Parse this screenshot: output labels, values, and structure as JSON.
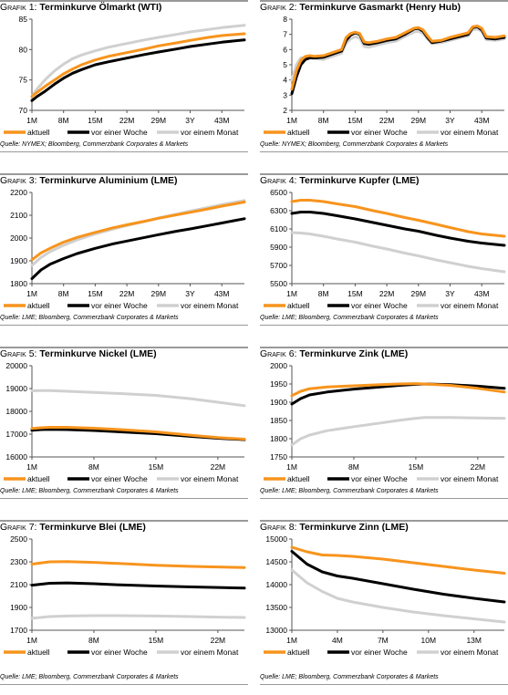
{
  "legend": [
    "aktuell",
    "vor einer Woche",
    "vor einem Monat"
  ],
  "colors": {
    "aktuell": "#f7941d",
    "woche": "#000000",
    "monat": "#d0d0d0"
  },
  "charts": [
    {
      "number_label": "Grafik 1:",
      "title": "Terminkurve Ölmarkt (WTI)",
      "source": "Quelle: NYMEX; Bloomberg, Commerzbank Corporates & Markets",
      "chart_data": {
        "type": "line",
        "x": [
          1,
          2,
          4,
          6,
          8,
          10,
          12,
          15,
          18,
          22,
          26,
          29,
          33,
          36,
          40,
          43,
          48
        ],
        "x_ticks": [
          {
            "v": 1,
            "label": "1M"
          },
          {
            "v": 8,
            "label": "8M"
          },
          {
            "v": 15,
            "label": "15M"
          },
          {
            "v": 22,
            "label": "22M"
          },
          {
            "v": 29,
            "label": "29M"
          },
          {
            "v": 36,
            "label": "3Y"
          },
          {
            "v": 43,
            "label": "43M"
          }
        ],
        "xlim": [
          1,
          48
        ],
        "ylim": [
          70,
          85
        ],
        "y_ticks": [
          70,
          75,
          80,
          85
        ],
        "series": [
          {
            "name": "aktuell",
            "values": [
              72.3,
              72.9,
              74.0,
              75.0,
              76.0,
              76.8,
              77.5,
              78.3,
              78.9,
              79.5,
              80.1,
              80.6,
              81.1,
              81.5,
              82.0,
              82.3,
              82.6
            ]
          },
          {
            "name": "vor einer Woche",
            "values": [
              71.6,
              72.2,
              73.2,
              74.3,
              75.3,
              76.1,
              76.7,
              77.5,
              78.0,
              78.6,
              79.2,
              79.6,
              80.1,
              80.5,
              80.9,
              81.2,
              81.6
            ]
          },
          {
            "name": "vor einem Monat",
            "values": [
              72.3,
              73.4,
              75.1,
              76.5,
              77.6,
              78.5,
              79.1,
              79.8,
              80.4,
              81.0,
              81.6,
              82.0,
              82.5,
              82.9,
              83.3,
              83.6,
              84.0
            ]
          }
        ]
      }
    },
    {
      "number_label": "Grafik 2:",
      "title": "Terminkurve Gasmarkt (Henry Hub)",
      "source": "Quelle: NYMEX; Bloomberg, Commerzbank Corporates & Markets",
      "chart_data": {
        "type": "line",
        "x": [
          1,
          2,
          3,
          4,
          5,
          6,
          8,
          10,
          12,
          13,
          14,
          15,
          16,
          17,
          18,
          20,
          22,
          24,
          26,
          28,
          29,
          30,
          31,
          32,
          34,
          36,
          38,
          40,
          41,
          42,
          43,
          44,
          46,
          48
        ],
        "x_ticks": [
          {
            "v": 1,
            "label": "1M"
          },
          {
            "v": 8,
            "label": "8M"
          },
          {
            "v": 15,
            "label": "15M"
          },
          {
            "v": 22,
            "label": "22M"
          },
          {
            "v": 29,
            "label": "29M"
          },
          {
            "v": 36,
            "label": "3Y"
          },
          {
            "v": 43,
            "label": "43M"
          }
        ],
        "xlim": [
          1,
          48
        ],
        "ylim": [
          2,
          8
        ],
        "y_ticks": [
          2,
          3,
          4,
          5,
          6,
          7,
          8
        ],
        "series": [
          {
            "name": "aktuell",
            "values": [
              3.4,
              4.6,
              5.3,
              5.55,
              5.6,
              5.55,
              5.6,
              5.8,
              6.0,
              6.8,
              7.05,
              7.15,
              7.05,
              6.5,
              6.45,
              6.55,
              6.7,
              6.8,
              7.1,
              7.4,
              7.45,
              7.3,
              6.9,
              6.55,
              6.6,
              6.8,
              6.95,
              7.1,
              7.5,
              7.55,
              7.4,
              6.85,
              6.8,
              6.9
            ]
          },
          {
            "name": "vor einer Woche",
            "values": [
              3.1,
              4.2,
              5.0,
              5.35,
              5.45,
              5.45,
              5.5,
              5.7,
              5.9,
              6.6,
              6.95,
              7.1,
              7.0,
              6.4,
              6.35,
              6.45,
              6.6,
              6.7,
              7.0,
              7.35,
              7.4,
              7.2,
              6.8,
              6.45,
              6.55,
              6.7,
              6.85,
              7.0,
              7.45,
              7.5,
              7.3,
              6.75,
              6.7,
              6.8
            ]
          },
          {
            "name": "vor einem Monat",
            "values": [
              4.0,
              5.0,
              5.45,
              5.5,
              5.45,
              5.4,
              5.35,
              5.55,
              5.75,
              6.4,
              6.7,
              6.85,
              6.75,
              6.2,
              6.15,
              6.3,
              6.45,
              6.55,
              6.85,
              7.15,
              7.2,
              7.05,
              6.7,
              6.4,
              6.45,
              6.6,
              6.75,
              6.9,
              7.3,
              7.35,
              7.2,
              6.65,
              6.6,
              6.7
            ]
          }
        ]
      }
    },
    {
      "number_label": "Grafik 3:",
      "title": "Terminkurve Aluminium (LME)",
      "source": "Quelle: LME; Bloomberg, Commerzbank Corporates & Markets",
      "chart_data": {
        "type": "line",
        "x": [
          1,
          3,
          5,
          8,
          11,
          15,
          19,
          22,
          26,
          29,
          33,
          36,
          40,
          43,
          48
        ],
        "x_ticks": [
          {
            "v": 1,
            "label": "1M"
          },
          {
            "v": 8,
            "label": "8M"
          },
          {
            "v": 15,
            "label": "15M"
          },
          {
            "v": 22,
            "label": "22M"
          },
          {
            "v": 29,
            "label": "29M"
          },
          {
            "v": 36,
            "label": "3Y"
          },
          {
            "v": 43,
            "label": "43M"
          }
        ],
        "xlim": [
          1,
          48
        ],
        "ylim": [
          1800,
          2200
        ],
        "y_ticks": [
          1800,
          1900,
          2000,
          2100,
          2200
        ],
        "series": [
          {
            "name": "aktuell",
            "values": [
              1905,
              1935,
              1955,
              1982,
              2003,
              2025,
              2045,
              2058,
              2074,
              2087,
              2102,
              2113,
              2128,
              2140,
              2158
            ]
          },
          {
            "name": "vor einer Woche",
            "values": [
              1822,
              1860,
              1885,
              1910,
              1932,
              1955,
              1975,
              1987,
              2003,
              2015,
              2030,
              2040,
              2055,
              2066,
              2085
            ]
          },
          {
            "name": "vor einem Monat",
            "values": [
              1880,
              1915,
              1940,
              1968,
              1992,
              2018,
              2040,
              2055,
              2073,
              2088,
              2105,
              2118,
              2134,
              2147,
              2165
            ]
          }
        ]
      }
    },
    {
      "number_label": "Grafik 4:",
      "title": "Terminkurve Kupfer (LME)",
      "source": "Quelle: LME; Bloomberg, Commerzbank Corporates & Markets",
      "chart_data": {
        "type": "line",
        "x": [
          1,
          3,
          5,
          8,
          11,
          15,
          19,
          22,
          26,
          29,
          33,
          36,
          40,
          43,
          48
        ],
        "x_ticks": [
          {
            "v": 1,
            "label": "1M"
          },
          {
            "v": 8,
            "label": "8M"
          },
          {
            "v": 15,
            "label": "15M"
          },
          {
            "v": 22,
            "label": "22M"
          },
          {
            "v": 29,
            "label": "29M"
          },
          {
            "v": 36,
            "label": "3Y"
          },
          {
            "v": 43,
            "label": "43M"
          }
        ],
        "xlim": [
          1,
          48
        ],
        "ylim": [
          5500,
          6500
        ],
        "y_ticks": [
          5500,
          5700,
          5900,
          6100,
          6300,
          6500
        ],
        "series": [
          {
            "name": "aktuell",
            "values": [
              6400,
              6415,
              6415,
              6400,
              6375,
              6345,
              6300,
              6270,
              6225,
              6195,
              6150,
              6115,
              6070,
              6045,
              6020
            ]
          },
          {
            "name": "vor einer Woche",
            "values": [
              6270,
              6285,
              6285,
              6270,
              6245,
              6210,
              6170,
              6140,
              6100,
              6075,
              6030,
              6000,
              5965,
              5945,
              5920
            ]
          },
          {
            "name": "vor einem Monat",
            "values": [
              6060,
              6055,
              6045,
              6020,
              5990,
              5955,
              5910,
              5880,
              5835,
              5805,
              5760,
              5730,
              5690,
              5665,
              5630
            ]
          }
        ]
      }
    },
    {
      "number_label": "Grafik 5:",
      "title": "Terminkurve Nickel (LME)",
      "source": "Quelle: LME; Bloomberg, Commerzbank Corporates & Markets",
      "chart_data": {
        "type": "line",
        "x": [
          1,
          2,
          3,
          5,
          8,
          11,
          15,
          19,
          22,
          25
        ],
        "x_ticks": [
          {
            "v": 1,
            "label": "1M"
          },
          {
            "v": 8,
            "label": "8M"
          },
          {
            "v": 15,
            "label": "15M"
          },
          {
            "v": 22,
            "label": "22M"
          }
        ],
        "xlim": [
          1,
          25
        ],
        "ylim": [
          16000,
          20000
        ],
        "y_ticks": [
          16000,
          17000,
          18000,
          19000,
          20000
        ],
        "series": [
          {
            "name": "aktuell",
            "values": [
              17250,
              17280,
              17300,
              17300,
              17260,
              17200,
              17100,
              16950,
              16850,
              16780
            ]
          },
          {
            "name": "vor einer Woche",
            "values": [
              17170,
              17200,
              17210,
              17200,
              17160,
              17100,
              17020,
              16900,
              16820,
              16760
            ]
          },
          {
            "name": "vor einem Monat",
            "values": [
              18900,
              18910,
              18910,
              18880,
              18830,
              18780,
              18700,
              18550,
              18400,
              18250
            ]
          }
        ]
      }
    },
    {
      "number_label": "Grafik 6:",
      "title": "Terminkurve Zink (LME)",
      "source": "Quelle: LME; Bloomberg, Commerzbank Corporates & Markets",
      "chart_data": {
        "type": "line",
        "x": [
          1,
          2,
          3,
          5,
          8,
          11,
          13,
          15,
          16,
          19,
          22,
          25
        ],
        "x_ticks": [
          {
            "v": 1,
            "label": "1M"
          },
          {
            "v": 8,
            "label": "8M"
          },
          {
            "v": 15,
            "label": "15M"
          },
          {
            "v": 22,
            "label": "22M"
          }
        ],
        "xlim": [
          1,
          25
        ],
        "ylim": [
          1750,
          2000
        ],
        "y_ticks": [
          1750,
          1800,
          1850,
          1900,
          1950,
          2000
        ],
        "series": [
          {
            "name": "aktuell",
            "values": [
              1918,
              1930,
              1937,
              1942,
              1945,
              1948,
              1950,
              1951,
              1950,
              1946,
              1938,
              1928
            ]
          },
          {
            "name": "vor einer Woche",
            "values": [
              1895,
              1910,
              1920,
              1928,
              1936,
              1942,
              1946,
              1949,
              1950,
              1948,
              1944,
              1938
            ]
          },
          {
            "name": "vor einem Monat",
            "values": [
              1783,
              1800,
              1810,
              1822,
              1833,
              1843,
              1850,
              1856,
              1858,
              1858,
              1857,
              1856
            ]
          }
        ]
      }
    },
    {
      "number_label": "Grafik 7:",
      "title": "Terminkurve Blei (LME)",
      "source": "Quelle: LME; Bloomberg, Commerzbank Corporates & Markets",
      "chart_data": {
        "type": "line",
        "x": [
          1,
          3,
          5,
          8,
          11,
          15,
          19,
          22,
          25
        ],
        "x_ticks": [
          {
            "v": 1,
            "label": "1M"
          },
          {
            "v": 8,
            "label": "8M"
          },
          {
            "v": 15,
            "label": "15M"
          },
          {
            "v": 22,
            "label": "22M"
          }
        ],
        "xlim": [
          1,
          25
        ],
        "ylim": [
          1700,
          2500
        ],
        "y_ticks": [
          1700,
          1900,
          2100,
          2300,
          2500
        ],
        "series": [
          {
            "name": "aktuell",
            "values": [
              2280,
              2300,
              2302,
              2295,
              2285,
              2270,
              2260,
              2255,
              2250
            ]
          },
          {
            "name": "vor einer Woche",
            "values": [
              2095,
              2112,
              2115,
              2108,
              2098,
              2088,
              2080,
              2075,
              2070
            ]
          },
          {
            "name": "vor einem Monat",
            "values": [
              1805,
              1820,
              1825,
              1828,
              1828,
              1825,
              1820,
              1815,
              1812
            ]
          }
        ]
      }
    },
    {
      "number_label": "Grafik 8:",
      "title": "Terminkurve Zinn (LME)",
      "source": "Quelle: LME; Bloomberg, Commerzbank Corporates & Markets",
      "chart_data": {
        "type": "line",
        "x": [
          1,
          2,
          3,
          4,
          5,
          7,
          9,
          11,
          13,
          15
        ],
        "x_ticks": [
          {
            "v": 1,
            "label": "1M"
          },
          {
            "v": 4,
            "label": "4M"
          },
          {
            "v": 7,
            "label": "7M"
          },
          {
            "v": 10,
            "label": "10M"
          },
          {
            "v": 13,
            "label": "13M"
          }
        ],
        "xlim": [
          1,
          15
        ],
        "ylim": [
          13000,
          15000
        ],
        "y_ticks": [
          13000,
          13500,
          14000,
          14500,
          15000
        ],
        "series": [
          {
            "name": "aktuell",
            "values": [
              14820,
              14720,
              14650,
              14640,
              14620,
              14560,
              14480,
              14400,
              14320,
              14250
            ]
          },
          {
            "name": "vor einer Woche",
            "values": [
              14730,
              14450,
              14280,
              14190,
              14140,
              14020,
              13900,
              13790,
              13700,
              13620
            ]
          },
          {
            "name": "vor einem Monat",
            "values": [
              14320,
              14040,
              13850,
              13700,
              13620,
              13500,
              13400,
              13320,
              13250,
              13180
            ]
          }
        ]
      }
    }
  ]
}
